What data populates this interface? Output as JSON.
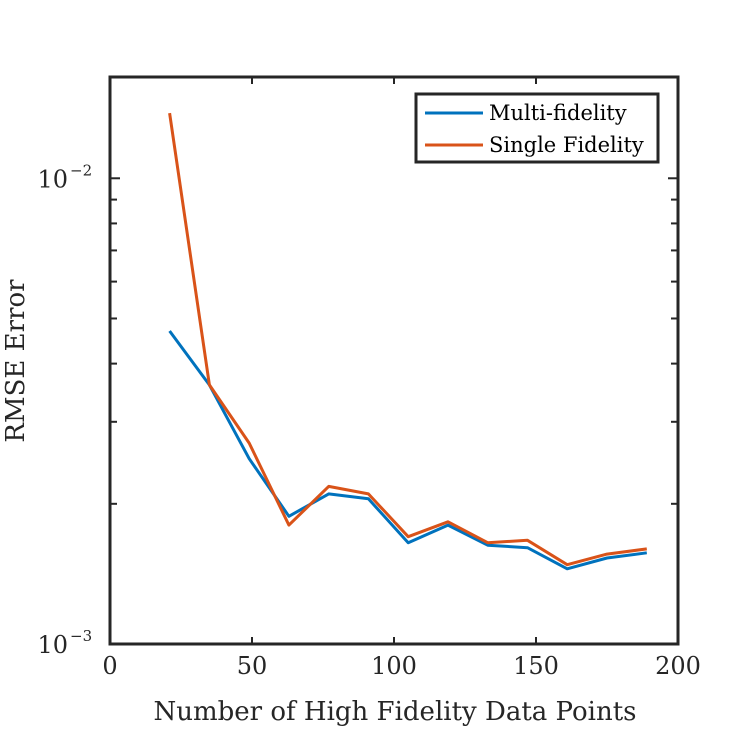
{
  "chart_data": {
    "type": "line",
    "xlabel": "Number of High Fidelity Data Points",
    "ylabel": "RMSE Error",
    "xlim": [
      0,
      200
    ],
    "ylim": [
      0.001,
      0.0165
    ],
    "yscale": "log",
    "grid": false,
    "legend_position": "top-right",
    "x_ticks": [
      0,
      50,
      100,
      150,
      200
    ],
    "y_tick_labels": [
      {
        "value": 0.01,
        "base": "10",
        "exponent": "−2"
      },
      {
        "value": 0.001,
        "base": "10",
        "exponent": "−3"
      }
    ],
    "series": [
      {
        "name": "Multi-fidelity",
        "color": "#0072BD",
        "x": [
          21,
          35,
          49,
          63,
          77,
          91,
          105,
          119,
          133,
          147,
          161,
          175,
          189
        ],
        "y": [
          0.0047,
          0.0036,
          0.0025,
          0.00188,
          0.0021,
          0.00205,
          0.00165,
          0.0018,
          0.00163,
          0.00161,
          0.00145,
          0.00153,
          0.00157
        ]
      },
      {
        "name": "Single Fidelity",
        "color": "#D95319",
        "x": [
          21,
          35,
          49,
          63,
          77,
          91,
          105,
          119,
          133,
          147,
          161,
          175,
          189
        ],
        "y": [
          0.0138,
          0.0036,
          0.0027,
          0.0018,
          0.00218,
          0.0021,
          0.0017,
          0.00183,
          0.00165,
          0.00167,
          0.00148,
          0.00156,
          0.0016
        ]
      }
    ]
  }
}
